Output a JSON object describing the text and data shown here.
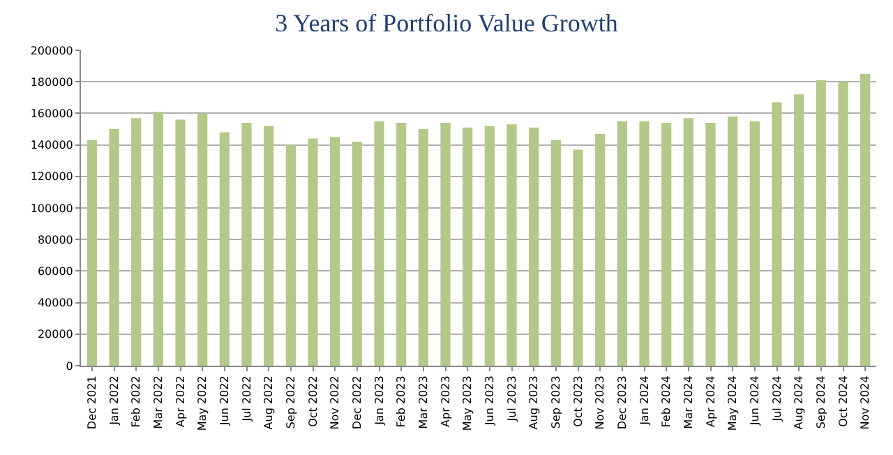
{
  "chart_data": {
    "type": "bar",
    "title": "3 Years of Portfolio Value Growth",
    "categories": [
      "Dec 2021",
      "Jan 2022",
      "Feb 2022",
      "Mar 2022",
      "Apr 2022",
      "May 2022",
      "Jun 2022",
      "Jul 2022",
      "Aug 2022",
      "Sep 2022",
      "Oct 2022",
      "Nov 2022",
      "Dec 2022",
      "Jan 2023",
      "Feb 2023",
      "Mar 2023",
      "Apr 2023",
      "May 2023",
      "Jun 2023",
      "Jul 2023",
      "Aug 2023",
      "Sep 2023",
      "Oct 2023",
      "Nov 2023",
      "Dec 2023",
      "Jan 2024",
      "Feb 2024",
      "Mar 2024",
      "Apr 2024",
      "May 2024",
      "Jun 2024",
      "Jul 2024",
      "Aug 2024",
      "Sep 2024",
      "Oct 2024",
      "Nov 2024"
    ],
    "values": [
      143000,
      150000,
      157000,
      161000,
      156000,
      160000,
      148000,
      154000,
      152000,
      140000,
      144000,
      145000,
      142000,
      155000,
      154000,
      150000,
      154000,
      151000,
      152000,
      153000,
      151000,
      143000,
      137000,
      147000,
      155000,
      155000,
      154000,
      157000,
      154000,
      158000,
      155000,
      167000,
      172000,
      181000,
      180000,
      185000
    ],
    "color": "#b3c98a",
    "ylim": [
      0,
      200000
    ],
    "yticks": [
      0,
      20000,
      40000,
      60000,
      80000,
      100000,
      120000,
      140000,
      160000,
      180000,
      200000
    ],
    "grid": "y"
  }
}
